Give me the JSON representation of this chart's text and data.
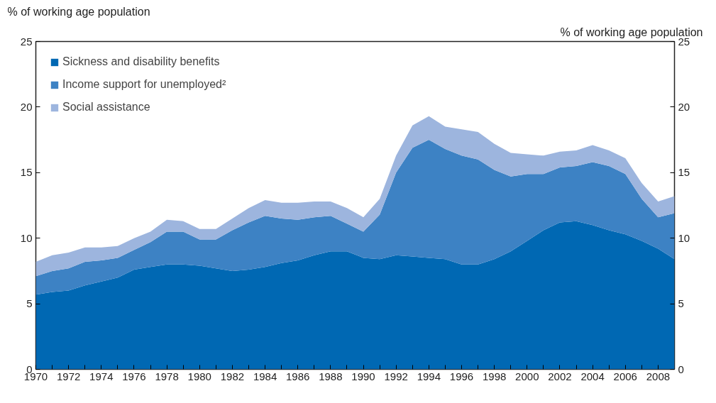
{
  "chart_data": {
    "type": "area",
    "stacked": true,
    "ylabel": "% of working age population",
    "y2label": "% of working age population",
    "x": [
      1970,
      1971,
      1972,
      1973,
      1974,
      1975,
      1976,
      1977,
      1978,
      1979,
      1980,
      1981,
      1982,
      1983,
      1984,
      1985,
      1986,
      1987,
      1988,
      1989,
      1990,
      1991,
      1992,
      1993,
      1994,
      1995,
      1996,
      1997,
      1998,
      1999,
      2000,
      2001,
      2002,
      2003,
      2004,
      2005,
      2006,
      2007,
      2008,
      2009
    ],
    "series": [
      {
        "name": "Sickness and disability benefits",
        "color": "#0068b3",
        "values": [
          5.7,
          5.9,
          6.0,
          6.4,
          6.7,
          7.0,
          7.6,
          7.8,
          8.0,
          8.0,
          7.9,
          7.7,
          7.5,
          7.6,
          7.8,
          8.1,
          8.3,
          8.7,
          9.0,
          9.0,
          8.5,
          8.4,
          8.7,
          8.6,
          8.5,
          8.4,
          8.0,
          8.0,
          8.4,
          9.0,
          9.8,
          10.6,
          11.2,
          11.3,
          11.0,
          10.6,
          10.3,
          9.8,
          9.2,
          8.4
        ]
      },
      {
        "name": "Income support for unemployed²",
        "color": "#3d82c4",
        "values": [
          1.4,
          1.6,
          1.7,
          1.8,
          1.6,
          1.5,
          1.5,
          1.9,
          2.5,
          2.5,
          2.0,
          2.2,
          3.1,
          3.6,
          3.9,
          3.4,
          3.1,
          2.9,
          2.7,
          2.1,
          2.0,
          3.4,
          6.3,
          8.3,
          9.0,
          8.4,
          8.3,
          8.0,
          6.8,
          5.7,
          5.1,
          4.3,
          4.2,
          4.2,
          4.8,
          4.9,
          4.6,
          3.2,
          2.4,
          3.5
        ]
      },
      {
        "name": "Social assistance",
        "color": "#9db5de",
        "values": [
          1.1,
          1.2,
          1.2,
          1.1,
          1.0,
          0.9,
          0.9,
          0.8,
          0.9,
          0.8,
          0.8,
          0.8,
          0.9,
          1.1,
          1.2,
          1.2,
          1.3,
          1.2,
          1.1,
          1.2,
          1.1,
          1.2,
          1.3,
          1.7,
          1.8,
          1.7,
          2.0,
          2.1,
          2.0,
          1.8,
          1.5,
          1.4,
          1.2,
          1.2,
          1.3,
          1.2,
          1.2,
          1.2,
          1.2,
          1.3
        ]
      }
    ],
    "xlim": [
      1970,
      2009
    ],
    "xticks": [
      1970,
      {
        "value": 1971,
        "label": null
      },
      1972,
      {
        "value": 1973,
        "label": null
      },
      1974,
      {
        "value": 1975,
        "label": null
      },
      1976,
      {
        "value": 1977,
        "label": null
      },
      1978,
      {
        "value": 1979,
        "label": null
      },
      1980,
      {
        "value": 1981,
        "label": null
      },
      1982,
      {
        "value": 1983,
        "label": null
      },
      1984,
      {
        "value": 1985,
        "label": null
      },
      1986,
      {
        "value": 1987,
        "label": null
      },
      1988,
      {
        "value": 1989,
        "label": null
      },
      1990,
      {
        "value": 1991,
        "label": null
      },
      1992,
      {
        "value": 1993,
        "label": null
      },
      1994,
      {
        "value": 1995,
        "label": null
      },
      1996,
      {
        "value": 1997,
        "label": null
      },
      1998,
      {
        "value": 1999,
        "label": null
      },
      2000,
      {
        "value": 2001,
        "label": null
      },
      2002,
      {
        "value": 2003,
        "label": null
      },
      2004,
      {
        "value": 2005,
        "label": null
      },
      2006,
      {
        "value": 2007,
        "label": null
      },
      2008
    ],
    "ylim": [
      0,
      25
    ],
    "yticks": [
      0,
      5,
      10,
      15,
      20,
      25
    ],
    "y2lim": [
      0,
      25
    ],
    "y2ticks": [
      0,
      5,
      10,
      15,
      20,
      25
    ],
    "grid": false,
    "legend": "top left"
  }
}
